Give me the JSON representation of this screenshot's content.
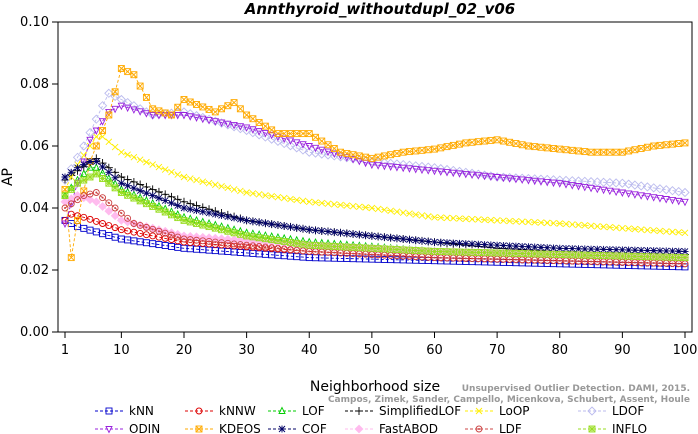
{
  "chart_data": {
    "type": "line",
    "title": "Annthyroid_withoutdupl_02_v06",
    "xlabel": "Neighborhood size",
    "ylabel": "AP",
    "xlim": [
      1,
      100
    ],
    "ylim": [
      0.0,
      0.1
    ],
    "x_ticks": [
      1,
      10,
      20,
      30,
      40,
      50,
      60,
      70,
      80,
      90,
      100
    ],
    "y_ticks": [
      "0.00",
      "0.02",
      "0.04",
      "0.06",
      "0.08",
      "0.10"
    ],
    "grid": false,
    "legend_position": "bottom",
    "credit_line1": "Unsupervised Outlier Detection. DAMI, 2015.",
    "credit_line2": "Campos, Zimek, Sander, Campello, Micenkova, Schubert, Assent, Houle",
    "series": [
      {
        "name": "kNN",
        "color": "#0000cc",
        "marker": "square",
        "keypoints": [
          [
            1,
            0.036
          ],
          [
            3,
            0.034
          ],
          [
            10,
            0.03
          ],
          [
            20,
            0.027
          ],
          [
            40,
            0.024
          ],
          [
            60,
            0.023
          ],
          [
            80,
            0.022
          ],
          [
            100,
            0.021
          ]
        ]
      },
      {
        "name": "kNNW",
        "color": "#dd0000",
        "marker": "circle",
        "keypoints": [
          [
            1,
            0.036
          ],
          [
            2,
            0.038
          ],
          [
            4,
            0.037
          ],
          [
            10,
            0.033
          ],
          [
            20,
            0.029
          ],
          [
            40,
            0.026
          ],
          [
            60,
            0.024
          ],
          [
            80,
            0.023
          ],
          [
            100,
            0.022
          ]
        ]
      },
      {
        "name": "LOF",
        "color": "#00cc00",
        "marker": "triangle-up",
        "keypoints": [
          [
            1,
            0.044
          ],
          [
            3,
            0.049
          ],
          [
            5,
            0.053
          ],
          [
            6,
            0.053
          ],
          [
            10,
            0.046
          ],
          [
            20,
            0.037
          ],
          [
            30,
            0.032
          ],
          [
            40,
            0.029
          ],
          [
            60,
            0.026
          ],
          [
            80,
            0.025
          ],
          [
            100,
            0.024
          ]
        ]
      },
      {
        "name": "SimplifiedLOF",
        "color": "#000000",
        "marker": "plus",
        "keypoints": [
          [
            1,
            0.049
          ],
          [
            3,
            0.052
          ],
          [
            6,
            0.056
          ],
          [
            10,
            0.05
          ],
          [
            20,
            0.042
          ],
          [
            30,
            0.036
          ],
          [
            40,
            0.033
          ],
          [
            50,
            0.031
          ],
          [
            60,
            0.029
          ],
          [
            70,
            0.027
          ],
          [
            80,
            0.026
          ],
          [
            100,
            0.025
          ]
        ]
      },
      {
        "name": "LoOP",
        "color": "#ffee00",
        "marker": "x",
        "keypoints": [
          [
            1,
            0.046
          ],
          [
            3,
            0.054
          ],
          [
            6,
            0.063
          ],
          [
            7,
            0.063
          ],
          [
            10,
            0.058
          ],
          [
            20,
            0.05
          ],
          [
            30,
            0.045
          ],
          [
            40,
            0.042
          ],
          [
            50,
            0.04
          ],
          [
            60,
            0.037
          ],
          [
            70,
            0.036
          ],
          [
            80,
            0.035
          ],
          [
            100,
            0.032
          ]
        ]
      },
      {
        "name": "LDOF",
        "color": "#bbbbee",
        "marker": "diamond",
        "keypoints": [
          [
            1,
            0.049
          ],
          [
            4,
            0.06
          ],
          [
            7,
            0.073
          ],
          [
            8,
            0.077
          ],
          [
            10,
            0.075
          ],
          [
            15,
            0.07
          ],
          [
            20,
            0.071
          ],
          [
            30,
            0.065
          ],
          [
            40,
            0.058
          ],
          [
            50,
            0.055
          ],
          [
            60,
            0.053
          ],
          [
            70,
            0.05
          ],
          [
            80,
            0.049
          ],
          [
            90,
            0.048
          ],
          [
            100,
            0.045
          ]
        ]
      },
      {
        "name": "ODIN",
        "color": "#9922dd",
        "marker": "triangle-down",
        "keypoints": [
          [
            1,
            0.035
          ],
          [
            3,
            0.048
          ],
          [
            5,
            0.062
          ],
          [
            8,
            0.071
          ],
          [
            10,
            0.073
          ],
          [
            15,
            0.07
          ],
          [
            20,
            0.07
          ],
          [
            30,
            0.066
          ],
          [
            40,
            0.06
          ],
          [
            50,
            0.054
          ],
          [
            60,
            0.052
          ],
          [
            70,
            0.05
          ],
          [
            80,
            0.048
          ],
          [
            90,
            0.045
          ],
          [
            100,
            0.042
          ]
        ]
      },
      {
        "name": "KDEOS",
        "color": "#ffaa00",
        "marker": "square-x",
        "keypoints": [
          [
            1,
            0.046
          ],
          [
            2,
            0.024
          ],
          [
            3,
            0.036
          ],
          [
            5,
            0.055
          ],
          [
            8,
            0.07
          ],
          [
            10,
            0.085
          ],
          [
            12,
            0.083
          ],
          [
            15,
            0.072
          ],
          [
            18,
            0.07
          ],
          [
            20,
            0.075
          ],
          [
            25,
            0.071
          ],
          [
            28,
            0.074
          ],
          [
            30,
            0.07
          ],
          [
            35,
            0.064
          ],
          [
            40,
            0.064
          ],
          [
            45,
            0.058
          ],
          [
            50,
            0.056
          ],
          [
            55,
            0.058
          ],
          [
            60,
            0.059
          ],
          [
            65,
            0.061
          ],
          [
            70,
            0.062
          ],
          [
            75,
            0.06
          ],
          [
            80,
            0.059
          ],
          [
            85,
            0.058
          ],
          [
            90,
            0.058
          ],
          [
            95,
            0.06
          ],
          [
            100,
            0.061
          ]
        ]
      },
      {
        "name": "COF",
        "color": "#000066",
        "marker": "asterisk",
        "keypoints": [
          [
            1,
            0.05
          ],
          [
            3,
            0.053
          ],
          [
            5,
            0.055
          ],
          [
            6,
            0.055
          ],
          [
            10,
            0.048
          ],
          [
            20,
            0.04
          ],
          [
            30,
            0.036
          ],
          [
            40,
            0.033
          ],
          [
            50,
            0.031
          ],
          [
            60,
            0.029
          ],
          [
            70,
            0.028
          ],
          [
            80,
            0.027
          ],
          [
            100,
            0.026
          ]
        ]
      },
      {
        "name": "FastABOD",
        "color": "#ffbbee",
        "marker": "diamond-filled",
        "keypoints": [
          [
            1,
            0.042
          ],
          [
            3,
            0.044
          ],
          [
            6,
            0.042
          ],
          [
            10,
            0.036
          ],
          [
            20,
            0.031
          ],
          [
            40,
            0.028
          ],
          [
            60,
            0.026
          ],
          [
            80,
            0.025
          ],
          [
            100,
            0.024
          ]
        ]
      },
      {
        "name": "LDF",
        "color": "#cc4444",
        "marker": "circle-dot",
        "keypoints": [
          [
            1,
            0.04
          ],
          [
            4,
            0.044
          ],
          [
            6,
            0.045
          ],
          [
            9,
            0.04
          ],
          [
            12,
            0.035
          ],
          [
            20,
            0.03
          ],
          [
            30,
            0.028
          ],
          [
            40,
            0.026
          ],
          [
            60,
            0.024
          ],
          [
            80,
            0.023
          ],
          [
            100,
            0.022
          ]
        ]
      },
      {
        "name": "INFLO",
        "color": "#99dd22",
        "marker": "square-cross",
        "keypoints": [
          [
            1,
            0.044
          ],
          [
            3,
            0.048
          ],
          [
            6,
            0.051
          ],
          [
            10,
            0.045
          ],
          [
            20,
            0.036
          ],
          [
            30,
            0.031
          ],
          [
            40,
            0.028
          ],
          [
            60,
            0.026
          ],
          [
            80,
            0.025
          ],
          [
            100,
            0.024
          ]
        ]
      }
    ]
  }
}
